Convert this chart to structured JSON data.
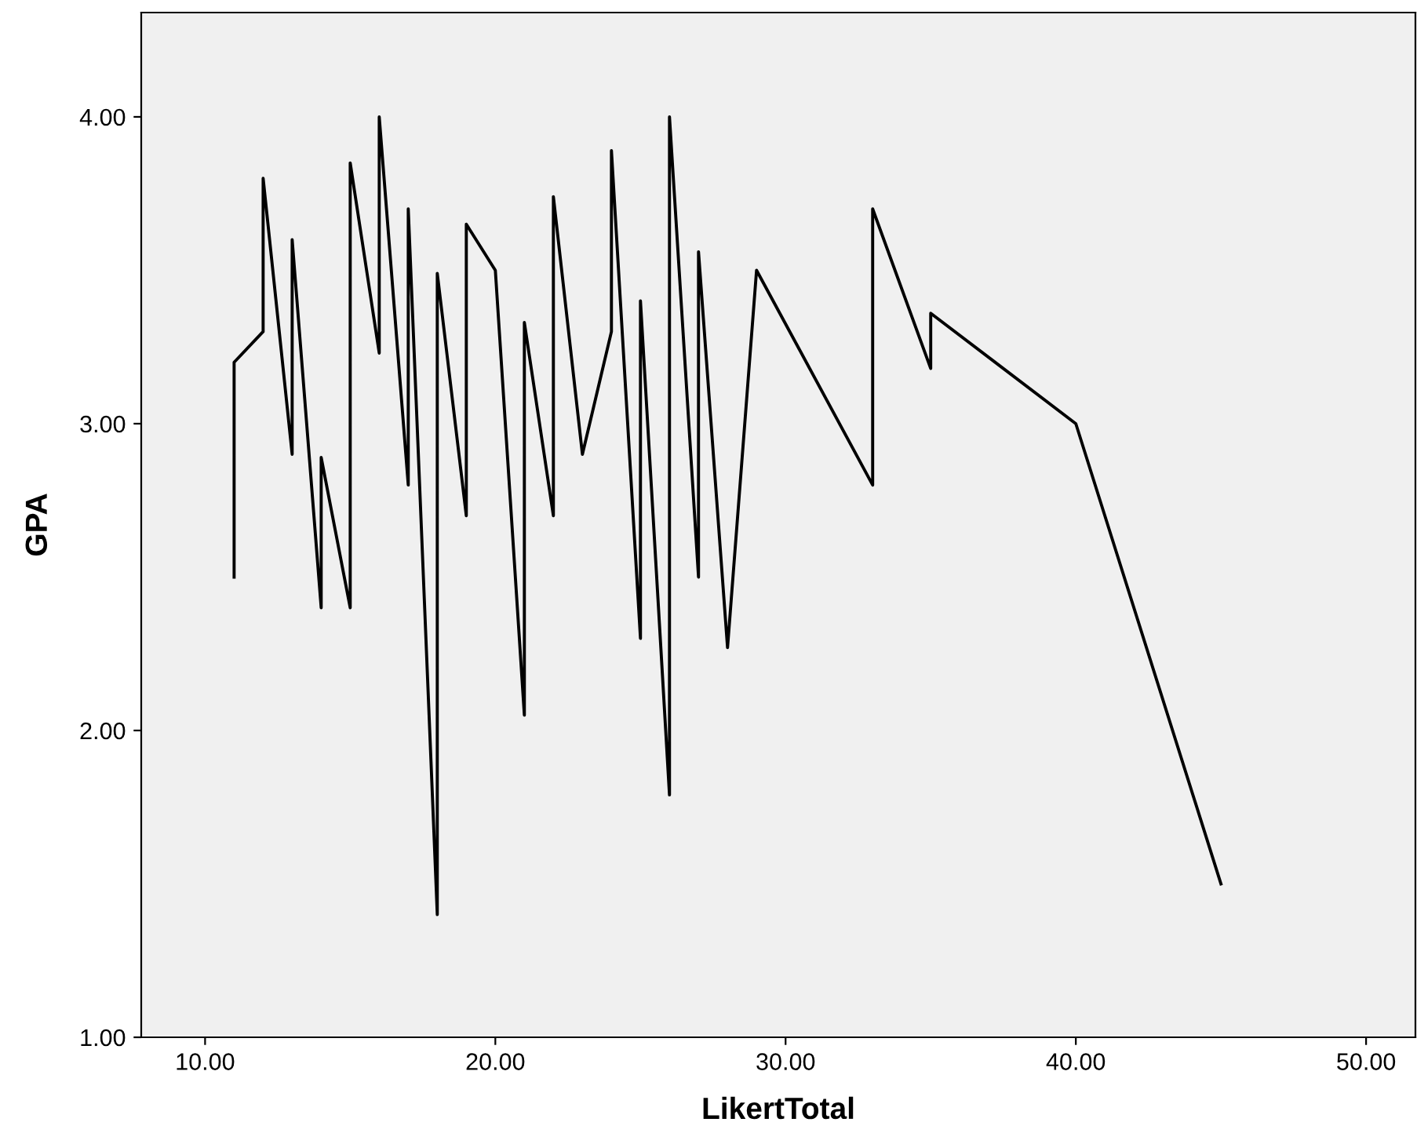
{
  "chart_data": {
    "type": "line",
    "xlabel": "LikertTotal",
    "ylabel": "GPA",
    "x": [
      11,
      11,
      12,
      12,
      13,
      13,
      14,
      14,
      15,
      15,
      16,
      16,
      17,
      17,
      18,
      18,
      19,
      19,
      20,
      21,
      21,
      22,
      22,
      23,
      24,
      24,
      25,
      25,
      26,
      26,
      27,
      27,
      28,
      29,
      33,
      33,
      35,
      35,
      40,
      45
    ],
    "series": [
      {
        "color": "#000000",
        "values": [
          2.5,
          3.2,
          3.3,
          3.8,
          2.9,
          3.6,
          2.4,
          2.89,
          2.4,
          3.85,
          3.23,
          4.0,
          2.8,
          3.7,
          1.4,
          3.49,
          2.7,
          3.65,
          3.5,
          2.05,
          3.33,
          2.7,
          3.74,
          2.9,
          3.3,
          3.89,
          2.3,
          3.4,
          1.79,
          4.0,
          2.5,
          3.56,
          2.27,
          3.5,
          2.8,
          3.7,
          3.18,
          3.36,
          3.0,
          1.5
        ]
      }
    ],
    "xlim": [
      7.8,
      51.7
    ],
    "ylim": [
      1.0,
      4.34
    ],
    "xticks": [
      {
        "value": 10,
        "label": "10.00"
      },
      {
        "value": 20,
        "label": "20.00"
      },
      {
        "value": 30,
        "label": "30.00"
      },
      {
        "value": 40,
        "label": "40.00"
      },
      {
        "value": 50,
        "label": "50.00"
      }
    ],
    "yticks": [
      {
        "value": 1,
        "label": "1.00"
      },
      {
        "value": 2,
        "label": "2.00"
      },
      {
        "value": 3,
        "label": "3.00"
      },
      {
        "value": 4,
        "label": "4.00"
      }
    ],
    "grid": false,
    "legend": false,
    "marker": "none",
    "line_style": "solid"
  }
}
